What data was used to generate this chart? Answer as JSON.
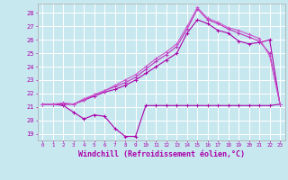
{
  "background_color": "#c8e8f0",
  "grid_color": "#ffffff",
  "line_color": "#aa00aa",
  "xlabel": "Windchill (Refroidissement éolien,°C)",
  "xlabel_fontsize": 6.0,
  "ylim": [
    18.5,
    28.7
  ],
  "yticks": [
    19,
    20,
    21,
    22,
    23,
    24,
    25,
    26,
    27,
    28
  ],
  "xlim": [
    -0.5,
    23.5
  ],
  "line1_x": [
    0,
    1,
    2,
    3,
    4,
    5,
    6,
    7,
    8,
    9,
    10,
    11,
    12,
    13,
    14,
    15,
    16,
    17,
    18,
    19,
    20,
    21,
    22,
    23
  ],
  "line1_y": [
    21.2,
    21.2,
    21.1,
    20.6,
    20.1,
    20.4,
    20.3,
    19.4,
    18.8,
    18.8,
    21.1,
    21.1,
    21.1,
    21.1,
    21.1,
    21.1,
    21.1,
    21.1,
    21.1,
    21.1,
    21.1,
    21.1,
    21.1,
    21.2
  ],
  "line2_x": [
    0,
    1,
    2,
    3,
    4,
    5,
    6,
    7,
    8,
    9,
    10,
    11,
    12,
    13,
    14,
    15,
    16,
    17,
    18,
    19,
    20,
    21,
    22,
    23
  ],
  "line2_y": [
    21.2,
    21.2,
    21.2,
    21.2,
    21.5,
    21.8,
    22.1,
    22.3,
    22.6,
    23.0,
    23.5,
    24.0,
    24.5,
    25.0,
    26.5,
    27.5,
    27.2,
    26.7,
    26.5,
    25.9,
    25.7,
    25.8,
    26.0,
    21.2
  ],
  "line3_x": [
    0,
    1,
    2,
    3,
    4,
    5,
    6,
    7,
    8,
    9,
    10,
    11,
    12,
    13,
    14,
    15,
    16,
    17,
    18,
    19,
    20,
    21,
    22,
    23
  ],
  "line3_y": [
    21.2,
    21.2,
    21.2,
    21.2,
    21.5,
    21.9,
    22.2,
    22.5,
    22.8,
    23.2,
    23.8,
    24.4,
    24.9,
    25.5,
    26.8,
    28.3,
    27.5,
    27.2,
    26.8,
    26.5,
    26.2,
    25.9,
    25.0,
    21.2
  ],
  "line4_x": [
    0,
    1,
    2,
    3,
    4,
    5,
    6,
    7,
    8,
    9,
    10,
    11,
    12,
    13,
    14,
    15,
    16,
    17,
    18,
    19,
    20,
    21,
    22,
    23
  ],
  "line4_y": [
    21.2,
    21.2,
    21.3,
    21.2,
    21.6,
    21.9,
    22.2,
    22.6,
    23.0,
    23.4,
    24.0,
    24.6,
    25.1,
    25.7,
    27.0,
    28.4,
    27.6,
    27.3,
    26.9,
    26.7,
    26.4,
    26.1,
    24.8,
    21.2
  ]
}
